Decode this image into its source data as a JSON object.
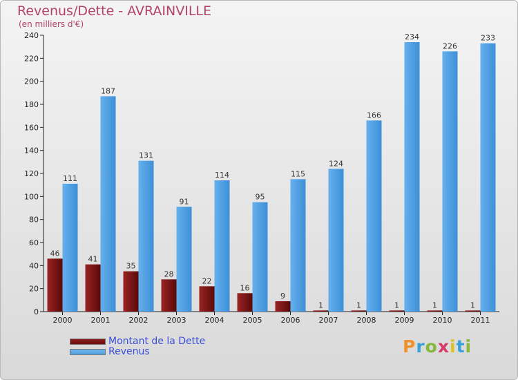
{
  "header": {
    "title": "Revenus/Dette - AVRAINVILLE",
    "subtitle": "(en milliers d'€)"
  },
  "colors": {
    "dette": "#6e0e0e",
    "revenus": "#4f9fe0",
    "title": "#b2446a",
    "legend_text": "#3c4fd8"
  },
  "chart_data": {
    "type": "bar",
    "title": "Revenus/Dette - AVRAINVILLE",
    "subtitle": "(en milliers d'€)",
    "categories": [
      "2000",
      "2001",
      "2002",
      "2003",
      "2004",
      "2005",
      "2006",
      "2007",
      "2008",
      "2009",
      "2010",
      "2011"
    ],
    "series": [
      {
        "name": "Montant de la Dette",
        "values": [
          46,
          41,
          35,
          28,
          22,
          16,
          9,
          1,
          1,
          1,
          1,
          1
        ]
      },
      {
        "name": "Revenus",
        "values": [
          111,
          187,
          131,
          91,
          114,
          95,
          115,
          124,
          166,
          234,
          226,
          233
        ]
      }
    ],
    "ylim": [
      0,
      240
    ],
    "yticks": [
      0,
      20,
      40,
      60,
      80,
      100,
      120,
      140,
      160,
      180,
      200,
      220,
      240
    ],
    "grid": false,
    "legend": "bottom-left",
    "data_labels": true
  },
  "legend": {
    "items": [
      {
        "label": "Montant de la Dette",
        "color": "#6e0e0e"
      },
      {
        "label": "Revenus",
        "color": "#4f9fe0"
      }
    ]
  },
  "logo": {
    "letters": [
      "P",
      "r",
      "o",
      "x",
      "i",
      "t",
      "i"
    ],
    "colors": [
      "#f0902a",
      "#3aa0d8",
      "#86b83c",
      "#d83a6a",
      "#e0c020",
      "#3aa0d8",
      "#86b83c"
    ]
  }
}
